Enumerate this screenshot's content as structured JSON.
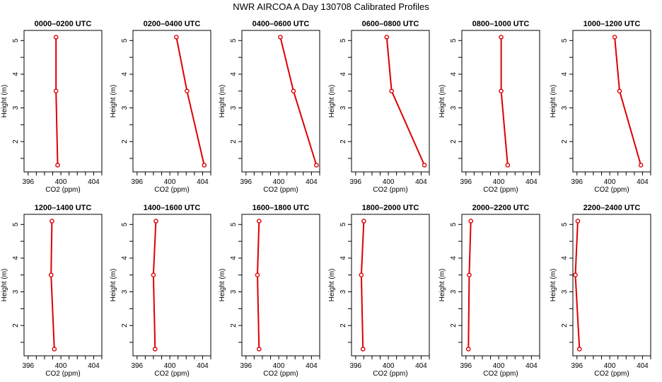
{
  "title": "NWR AIRCOA A  Day 130708  Calibrated Profiles",
  "colors": {
    "line": "#dd0000",
    "marker": "#dd0000",
    "axis": "#000000"
  },
  "chart_data": [
    {
      "type": "line",
      "title": "0000–0200 UTC",
      "xlabel": "CO2 (ppm)",
      "ylabel": "Height (m)",
      "xlim": [
        395.5,
        405
      ],
      "ylim": [
        1.1,
        5.3
      ],
      "xticks": [
        396,
        400,
        404
      ],
      "yticks": [
        2,
        3,
        4,
        5
      ],
      "x": [
        399.4,
        399.4,
        399.6
      ],
      "y": [
        5.1,
        3.5,
        1.3
      ]
    },
    {
      "type": "line",
      "title": "0200–0400 UTC",
      "xlabel": "CO2 (ppm)",
      "ylabel": "Height (m)",
      "xlim": [
        395.5,
        405
      ],
      "ylim": [
        1.1,
        5.3
      ],
      "xticks": [
        396,
        400,
        404
      ],
      "yticks": [
        2,
        3,
        4,
        5
      ],
      "x": [
        400.8,
        402.1,
        404.2
      ],
      "y": [
        5.1,
        3.5,
        1.3
      ]
    },
    {
      "type": "line",
      "title": "0400–0600 UTC",
      "xlabel": "CO2 (ppm)",
      "ylabel": "Height (m)",
      "xlim": [
        395.5,
        405
      ],
      "ylim": [
        1.1,
        5.3
      ],
      "xticks": [
        396,
        400,
        404
      ],
      "yticks": [
        2,
        3,
        4,
        5
      ],
      "x": [
        400.2,
        401.8,
        404.6
      ],
      "y": [
        5.1,
        3.5,
        1.3
      ]
    },
    {
      "type": "line",
      "title": "0600–0800 UTC",
      "xlabel": "CO2 (ppm)",
      "ylabel": "Height (m)",
      "xlim": [
        395.5,
        405
      ],
      "ylim": [
        1.1,
        5.3
      ],
      "xticks": [
        396,
        400,
        404
      ],
      "yticks": [
        2,
        3,
        4,
        5
      ],
      "x": [
        399.8,
        400.4,
        404.4
      ],
      "y": [
        5.1,
        3.5,
        1.3
      ]
    },
    {
      "type": "line",
      "title": "0800–1000 UTC",
      "xlabel": "CO2 (ppm)",
      "ylabel": "Height (m)",
      "xlim": [
        395.5,
        405
      ],
      "ylim": [
        1.1,
        5.3
      ],
      "xticks": [
        396,
        400,
        404
      ],
      "yticks": [
        2,
        3,
        4,
        5
      ],
      "x": [
        400.3,
        400.3,
        401.1
      ],
      "y": [
        5.1,
        3.5,
        1.3
      ]
    },
    {
      "type": "line",
      "title": "1000–1200 UTC",
      "xlabel": "CO2 (ppm)",
      "ylabel": "Height (m)",
      "xlim": [
        395.5,
        405
      ],
      "ylim": [
        1.1,
        5.3
      ],
      "xticks": [
        396,
        400,
        404
      ],
      "yticks": [
        2,
        3,
        4,
        5
      ],
      "x": [
        400.6,
        401.2,
        403.8
      ],
      "y": [
        5.1,
        3.5,
        1.3
      ]
    },
    {
      "type": "line",
      "title": "1200–1400 UTC",
      "xlabel": "CO2 (ppm)",
      "ylabel": "Height (m)",
      "xlim": [
        395.5,
        405
      ],
      "ylim": [
        1.1,
        5.3
      ],
      "xticks": [
        396,
        400,
        404
      ],
      "yticks": [
        2,
        3,
        4,
        5
      ],
      "x": [
        398.9,
        398.8,
        399.2
      ],
      "y": [
        5.1,
        3.5,
        1.3
      ]
    },
    {
      "type": "line",
      "title": "1400–1600 UTC",
      "xlabel": "CO2 (ppm)",
      "ylabel": "Height (m)",
      "xlim": [
        395.5,
        405
      ],
      "ylim": [
        1.1,
        5.3
      ],
      "xticks": [
        396,
        400,
        404
      ],
      "yticks": [
        2,
        3,
        4,
        5
      ],
      "x": [
        398.3,
        398.0,
        398.2
      ],
      "y": [
        5.1,
        3.5,
        1.3
      ]
    },
    {
      "type": "line",
      "title": "1600–1800 UTC",
      "xlabel": "CO2 (ppm)",
      "ylabel": "Height (m)",
      "xlim": [
        395.5,
        405
      ],
      "ylim": [
        1.1,
        5.3
      ],
      "xticks": [
        396,
        400,
        404
      ],
      "yticks": [
        2,
        3,
        4,
        5
      ],
      "x": [
        397.6,
        397.4,
        397.6
      ],
      "y": [
        5.1,
        3.5,
        1.3
      ]
    },
    {
      "type": "line",
      "title": "1800–2000 UTC",
      "xlabel": "CO2 (ppm)",
      "ylabel": "Height (m)",
      "xlim": [
        395.5,
        405
      ],
      "ylim": [
        1.1,
        5.3
      ],
      "xticks": [
        396,
        400,
        404
      ],
      "yticks": [
        2,
        3,
        4,
        5
      ],
      "x": [
        397.0,
        396.7,
        396.9
      ],
      "y": [
        5.1,
        3.5,
        1.3
      ]
    },
    {
      "type": "line",
      "title": "2000–2200 UTC",
      "xlabel": "CO2 (ppm)",
      "ylabel": "Height (m)",
      "xlim": [
        395.5,
        405
      ],
      "ylim": [
        1.1,
        5.3
      ],
      "xticks": [
        396,
        400,
        404
      ],
      "yticks": [
        2,
        3,
        4,
        5
      ],
      "x": [
        396.6,
        396.4,
        396.3
      ],
      "y": [
        5.1,
        3.5,
        1.3
      ]
    },
    {
      "type": "line",
      "title": "2200–2400 UTC",
      "xlabel": "CO2 (ppm)",
      "ylabel": "Height (m)",
      "xlim": [
        395.5,
        405
      ],
      "ylim": [
        1.1,
        5.3
      ],
      "xticks": [
        396,
        400,
        404
      ],
      "yticks": [
        2,
        3,
        4,
        5
      ],
      "x": [
        396.1,
        395.8,
        396.3
      ],
      "y": [
        5.1,
        3.5,
        1.3
      ]
    }
  ]
}
